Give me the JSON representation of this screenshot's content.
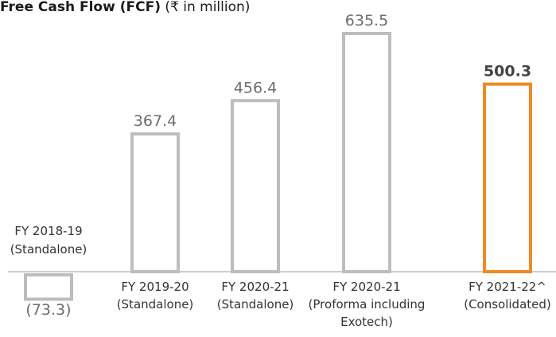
{
  "chart_data": {
    "type": "bar",
    "title": "Free Cash Flow (FCF)",
    "subtitle": "(₹ in million)",
    "categories": [
      [
        "FY 2018-19",
        "(Standalone)"
      ],
      [
        "FY 2019-20",
        "(Standalone)"
      ],
      [
        "FY 2020-21",
        "(Standalone)"
      ],
      [
        "FY 2020-21",
        "(Proforma including",
        "Exotech)"
      ],
      [
        "FY 2021-22^",
        "(Consolidated)"
      ]
    ],
    "values": [
      -73.3,
      367.4,
      456.4,
      635.5,
      500.3
    ],
    "value_labels": [
      "(73.3)",
      "367.4",
      "456.4",
      "635.5",
      "500.3"
    ],
    "colors": [
      "#bdbdbd",
      "#bdbdbd",
      "#bdbdbd",
      "#bdbdbd",
      "#f08a24"
    ],
    "highlight": 4
  }
}
